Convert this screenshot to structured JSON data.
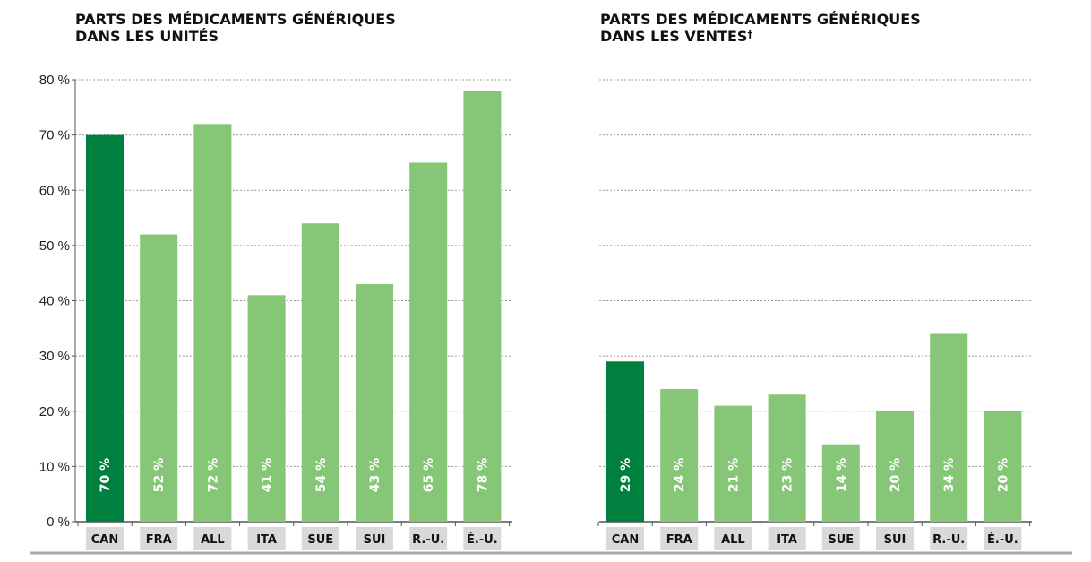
{
  "colors": {
    "highlight": "#00803f",
    "bar": "#85c776",
    "grid": "#9a9a9a",
    "axis": "#555555",
    "label_bg": "#d9d9d9",
    "baseline": "#aaaaaa"
  },
  "chart_data": [
    {
      "type": "bar",
      "title_lines": [
        "PARTS DES MÉDICAMENTS GÉNÉRIQUES",
        "DANS LES UNITÉS"
      ],
      "title_mark": "",
      "categories": [
        "CAN",
        "FRA",
        "ALL",
        "ITA",
        "SUE",
        "SUI",
        "R.-U.",
        "É.-U."
      ],
      "values": [
        70,
        52,
        72,
        41,
        54,
        43,
        65,
        78
      ],
      "value_labels": [
        "70 %",
        "52 %",
        "72 %",
        "41 %",
        "54 %",
        "43 %",
        "65 %",
        "78 %"
      ],
      "highlight_index": 0,
      "ylim": [
        0,
        80
      ],
      "yticks": [
        0,
        10,
        20,
        30,
        40,
        50,
        60,
        70,
        80
      ],
      "ytick_labels": [
        "0 %",
        "10 %",
        "20 %",
        "30 %",
        "40 %",
        "50 %",
        "60 %",
        "70 %",
        "80 %"
      ],
      "grid": true
    },
    {
      "type": "bar",
      "title_lines": [
        "PARTS DES MÉDICAMENTS GÉNÉRIQUES",
        "DANS LES VENTES"
      ],
      "title_mark": "†",
      "categories": [
        "CAN",
        "FRA",
        "ALL",
        "ITA",
        "SUE",
        "SUI",
        "R.-U.",
        "É.-U."
      ],
      "values": [
        29,
        24,
        21,
        23,
        14,
        20,
        34,
        20
      ],
      "value_labels": [
        "29 %",
        "24 %",
        "21 %",
        "23 %",
        "14 %",
        "20 %",
        "34 %",
        "20 %"
      ],
      "highlight_index": 0,
      "ylim": [
        0,
        80
      ],
      "yticks": [
        0,
        10,
        20,
        30,
        40,
        50,
        60,
        70,
        80
      ],
      "ytick_labels": [],
      "grid": true
    }
  ]
}
